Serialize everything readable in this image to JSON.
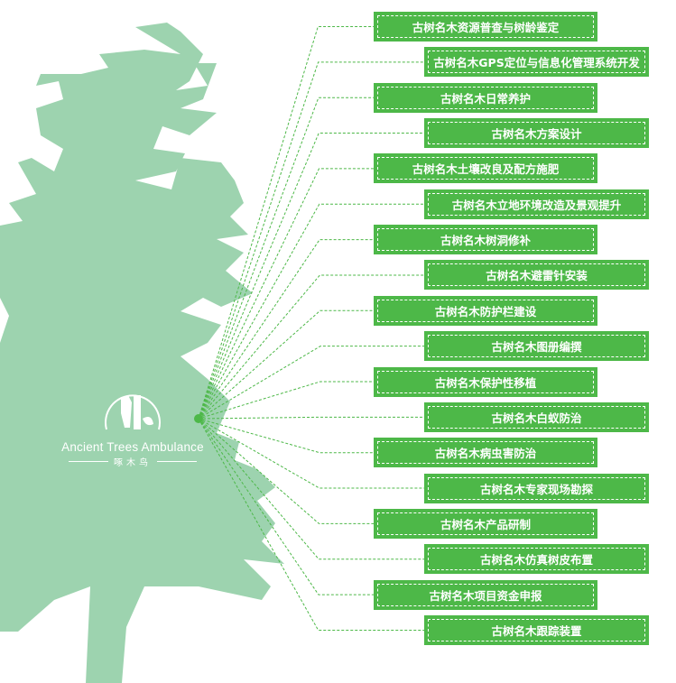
{
  "colors": {
    "box": "#4db848",
    "tree": "#9dd3af",
    "line": "#4db848"
  },
  "logo": {
    "brand_en": "Ancient Trees Ambulance",
    "brand_cn": "啄木鸟",
    "icon": "woodpecker-tree-logo-icon"
  },
  "items": [
    {
      "label": "古树名木资源普查与树龄鉴定"
    },
    {
      "label": "古树名木GPS定位与信息化管理系统开发"
    },
    {
      "label": "古树名木日常养护"
    },
    {
      "label": "古树名木方案设计"
    },
    {
      "label": "古树名木土壤改良及配方施肥"
    },
    {
      "label": "古树名木立地环境改造及景观提升"
    },
    {
      "label": "古树名木树洞修补"
    },
    {
      "label": "古树名木避雷针安装"
    },
    {
      "label": "古树名木防护栏建设"
    },
    {
      "label": "古树名木图册编撰"
    },
    {
      "label": "古树名木保护性移植"
    },
    {
      "label": "古树名木白蚁防治"
    },
    {
      "label": "古树名木病虫害防治"
    },
    {
      "label": "古树名木专家现场勘探"
    },
    {
      "label": "古树名木产品研制"
    },
    {
      "label": "古树名木仿真树皮布置"
    },
    {
      "label": "古树名木项目资金申报"
    },
    {
      "label": "古树名木跟踪装置"
    }
  ]
}
